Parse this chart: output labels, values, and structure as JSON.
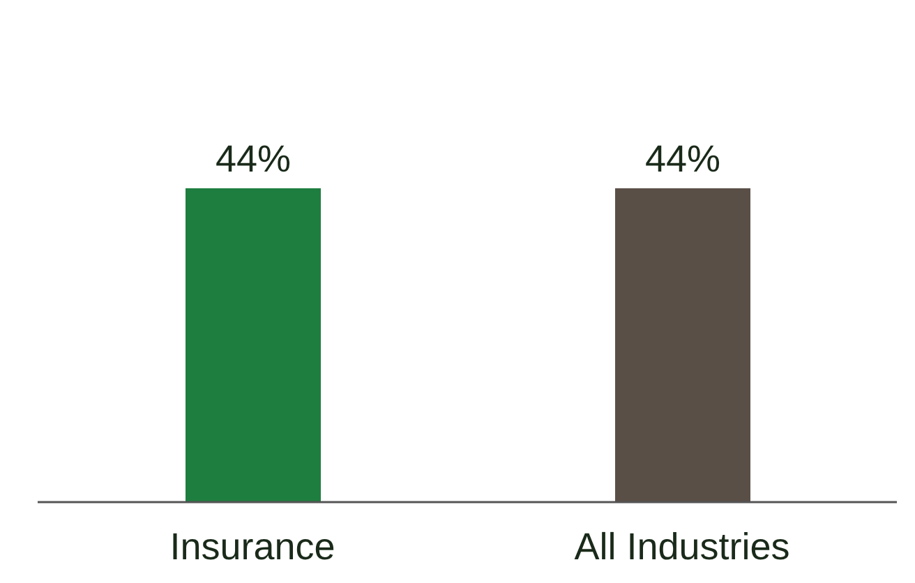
{
  "chart_data": {
    "type": "bar",
    "categories": [
      "Insurance",
      "All Industries"
    ],
    "values": [
      44,
      44
    ],
    "value_labels": [
      "44%",
      "44%"
    ],
    "colors": [
      "#1e7e40",
      "#5a4f47"
    ]
  }
}
